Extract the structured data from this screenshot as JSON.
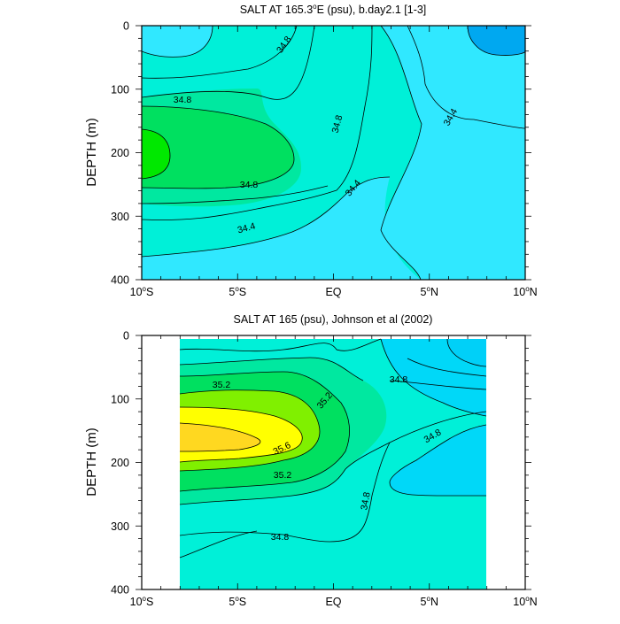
{
  "figure": {
    "panels": [
      {
        "title_main": "SALT AT 165.3",
        "title_sup": "o",
        "title_rest": "E (psu), b.day2.1 [1-3]",
        "ylabel": "DEPTH (m)",
        "y_ticks": [
          "0",
          "100",
          "200",
          "300",
          "400"
        ],
        "x_ticks": [
          {
            "num": "10",
            "deg": "o",
            "hemi": "S"
          },
          {
            "num": "5",
            "deg": "o",
            "hemi": "S"
          },
          {
            "num": "EQ",
            "deg": "",
            "hemi": ""
          },
          {
            "num": "5",
            "deg": "o",
            "hemi": "N"
          },
          {
            "num": "10",
            "deg": "o",
            "hemi": "N"
          }
        ],
        "contour_labels": [
          "34.8",
          "34.8",
          "34.8",
          "34.4",
          "34.8",
          "34.4",
          "34.4"
        ]
      },
      {
        "title_main": "SALT AT 165 (psu), Johnson et al (2002)",
        "title_sup": "",
        "title_rest": "",
        "ylabel": "DEPTH (m)",
        "y_ticks": [
          "0",
          "100",
          "200",
          "300",
          "400"
        ],
        "x_ticks": [
          {
            "num": "10",
            "deg": "o",
            "hemi": "S"
          },
          {
            "num": "5",
            "deg": "o",
            "hemi": "S"
          },
          {
            "num": "EQ",
            "deg": "",
            "hemi": ""
          },
          {
            "num": "5",
            "deg": "o",
            "hemi": "N"
          },
          {
            "num": "10",
            "deg": "o",
            "hemi": "N"
          }
        ],
        "contour_labels": [
          "35.2",
          "35.2",
          "34.8",
          "35.6",
          "34.8",
          "35.2",
          "34.8",
          "34.8"
        ]
      }
    ]
  },
  "chart_data": [
    {
      "type": "contour",
      "title": "SALT AT 165.3°E (psu), b.day2.1 [1-3]",
      "xlabel": "",
      "ylabel": "DEPTH (m)",
      "x_range": [
        -10,
        10
      ],
      "y_range": [
        0,
        400
      ],
      "y_inverted": true,
      "x_tick_labels": [
        "10°S",
        "5°S",
        "EQ",
        "5°N",
        "10°N"
      ],
      "y_tick_labels": [
        "0",
        "100",
        "200",
        "300",
        "400"
      ],
      "contour_levels_labeled": [
        34.4,
        34.8
      ],
      "max_salinity_location": {
        "lat": -10,
        "depth": 180
      },
      "colors": {
        "lowest": "#00a8f0",
        "low": "#30e8ff",
        "mid": "#00f0d8",
        "high": "#00e8a0",
        "higher": "#00e060",
        "highest": "#00e800"
      }
    },
    {
      "type": "contour",
      "title": "SALT AT 165 (psu), Johnson et al (2002)",
      "xlabel": "",
      "ylabel": "DEPTH (m)",
      "x_range": [
        -10,
        10
      ],
      "y_range": [
        0,
        400
      ],
      "y_inverted": true,
      "data_lat_range": [
        -8,
        8
      ],
      "data_depth_range": [
        10,
        400
      ],
      "x_tick_labels": [
        "10°S",
        "5°S",
        "EQ",
        "5°N",
        "10°N"
      ],
      "y_tick_labels": [
        "0",
        "100",
        "200",
        "300",
        "400"
      ],
      "contour_levels_labeled": [
        34.8,
        35.2,
        35.6
      ],
      "max_salinity_location": {
        "lat": -6,
        "depth": 170
      },
      "colors": {
        "low": "#00d8f8",
        "mid": "#00f0d8",
        "high": "#00e8a0",
        "higher": "#00e060",
        "bright": "#80f000",
        "yellow": "#ffff00",
        "gold": "#ffd820"
      }
    }
  ]
}
